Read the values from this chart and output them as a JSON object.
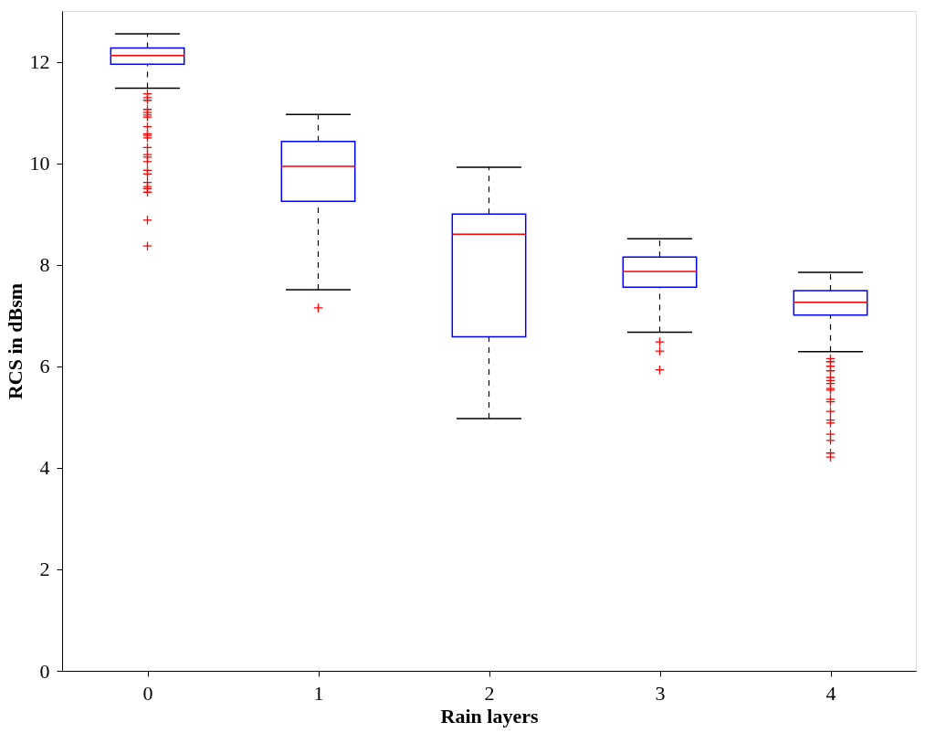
{
  "chart_data": {
    "type": "box",
    "xlabel": "Rain layers",
    "ylabel": "RCS in dBsm",
    "categories": [
      "0",
      "1",
      "2",
      "3",
      "4"
    ],
    "ylim": [
      0,
      13
    ],
    "yticks": [
      0,
      2,
      4,
      6,
      8,
      10,
      12
    ],
    "grid": false,
    "marker": "cross",
    "series": [
      {
        "color": "#0000ff",
        "boxes": [
          {
            "low": 11.48,
            "q1": 11.95,
            "median": 12.12,
            "q3": 12.27,
            "high": 12.55,
            "outliers": [
              11.37,
              11.29,
              11.24,
              11.06,
              11.0,
              10.95,
              10.91,
              10.72,
              10.58,
              10.55,
              10.5,
              10.31,
              10.17,
              10.12,
              10.03,
              9.86,
              9.79,
              9.62,
              9.54,
              9.5,
              9.43,
              8.88,
              8.37
            ]
          },
          {
            "low": 7.51,
            "q1": 9.25,
            "median": 9.94,
            "q3": 10.43,
            "high": 10.96,
            "outliers": [
              7.15
            ]
          },
          {
            "low": 4.97,
            "q1": 6.58,
            "median": 8.6,
            "q3": 9.0,
            "high": 9.92
          },
          {
            "low": 6.67,
            "q1": 7.56,
            "median": 7.87,
            "q3": 8.15,
            "high": 8.51,
            "outliers": [
              6.48,
              6.3,
              5.93
            ]
          },
          {
            "low": 6.29,
            "q1": 7.01,
            "median": 7.26,
            "q3": 7.49,
            "high": 7.85,
            "outliers": [
              6.15,
              6.09,
              6.0,
              5.91,
              5.78,
              5.72,
              5.66,
              5.56,
              5.53,
              5.35,
              5.3,
              5.11,
              4.94,
              4.88,
              4.66,
              4.54,
              4.29,
              4.21
            ]
          }
        ]
      }
    ]
  }
}
